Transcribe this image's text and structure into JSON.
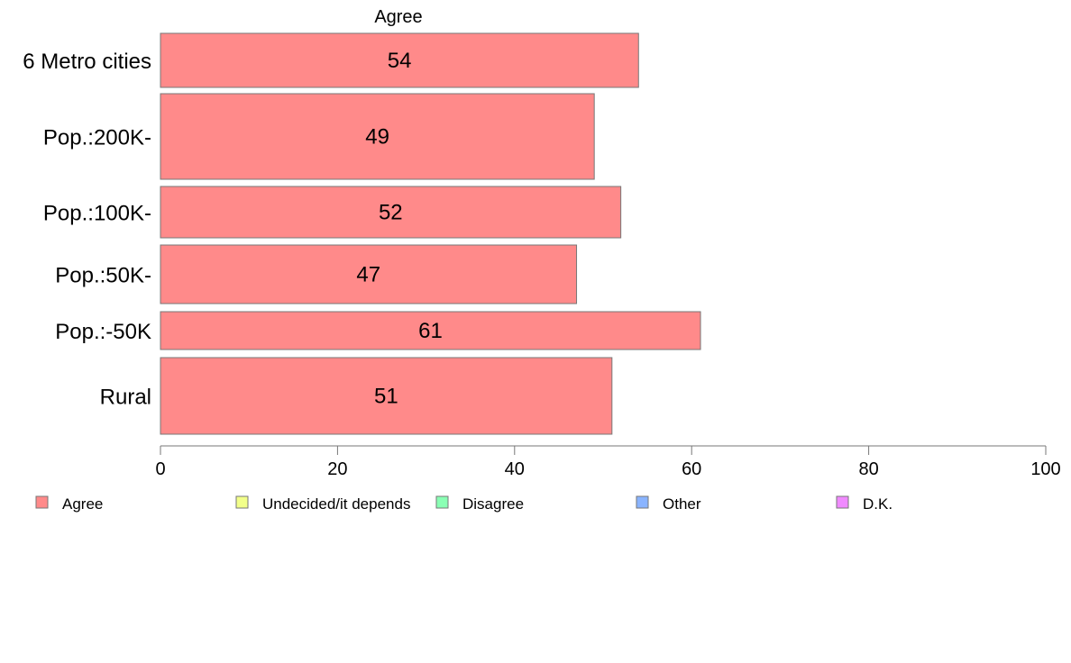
{
  "chart_data": {
    "type": "bar",
    "orientation": "horizontal",
    "title": "Agree",
    "categories": [
      "6 Metro cities",
      "Pop.:200K-",
      "Pop.:100K-",
      "Pop.:50K-",
      "Pop.:-50K",
      "Rural"
    ],
    "series": [
      {
        "name": "Agree",
        "values": [
          54,
          49,
          52,
          47,
          61,
          51
        ]
      }
    ],
    "xlim": [
      0,
      100
    ],
    "xticks": [
      "0",
      "20",
      "40",
      "60",
      "80",
      "100"
    ],
    "grid": false,
    "legend": {
      "placement": "bottom",
      "items": [
        {
          "label": "Agree",
          "color": "#ff8a8a"
        },
        {
          "label": "Undecided/it depends",
          "color": "#f2ff8a"
        },
        {
          "label": "Disagree",
          "color": "#8affb4"
        },
        {
          "label": "Other",
          "color": "#8ab4ff"
        },
        {
          "label": "D.K.",
          "color": "#f08aff"
        }
      ]
    },
    "bar_color": "#ff8a8a",
    "bar_stroke": "#777777"
  }
}
